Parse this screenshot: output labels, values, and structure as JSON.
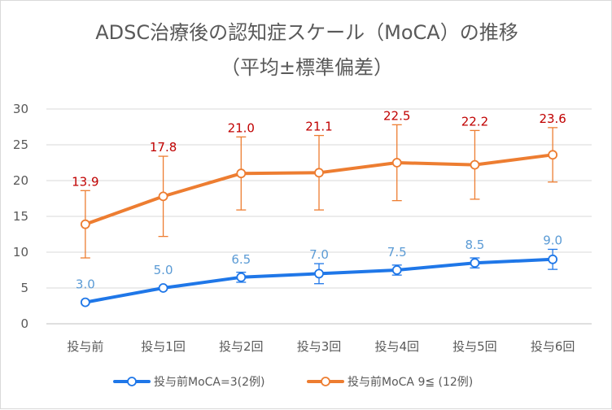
{
  "chart_data": {
    "type": "line",
    "title": "ADSC治療後の認知症スケール（MoCA）の推移",
    "subtitle": "（平均±標準偏差）",
    "categories": [
      "投与前",
      "投与1回",
      "投与2回",
      "投与3回",
      "投与4回",
      "投与5回",
      "投与6回"
    ],
    "ylim": [
      0,
      30
    ],
    "yticks": [
      0,
      5,
      10,
      15,
      20,
      25,
      30
    ],
    "grid": true,
    "legend_position": "bottom",
    "series": [
      {
        "name": "投与前MoCA=3(2例)",
        "color": "#1f77e8",
        "label_color": "#5b9bd5",
        "values": [
          3.0,
          5.0,
          6.5,
          7.0,
          7.5,
          8.5,
          9.0
        ],
        "labels": [
          "3.0",
          "5.0",
          "6.5",
          "7.0",
          "7.5",
          "8.5",
          "9.0"
        ],
        "error": [
          0.0,
          0.0,
          0.7,
          1.4,
          0.7,
          0.7,
          1.4
        ]
      },
      {
        "name": "投与前MoCA 9≦ (12例)",
        "color": "#ed7d31",
        "label_color": "#c00000",
        "values": [
          13.9,
          17.8,
          21.0,
          21.1,
          22.5,
          22.2,
          23.6
        ],
        "labels": [
          "13.9",
          "17.8",
          "21.0",
          "21.1",
          "22.5",
          "22.2",
          "23.6"
        ],
        "error": [
          4.7,
          5.6,
          5.1,
          5.2,
          5.3,
          4.8,
          3.8
        ]
      }
    ]
  }
}
